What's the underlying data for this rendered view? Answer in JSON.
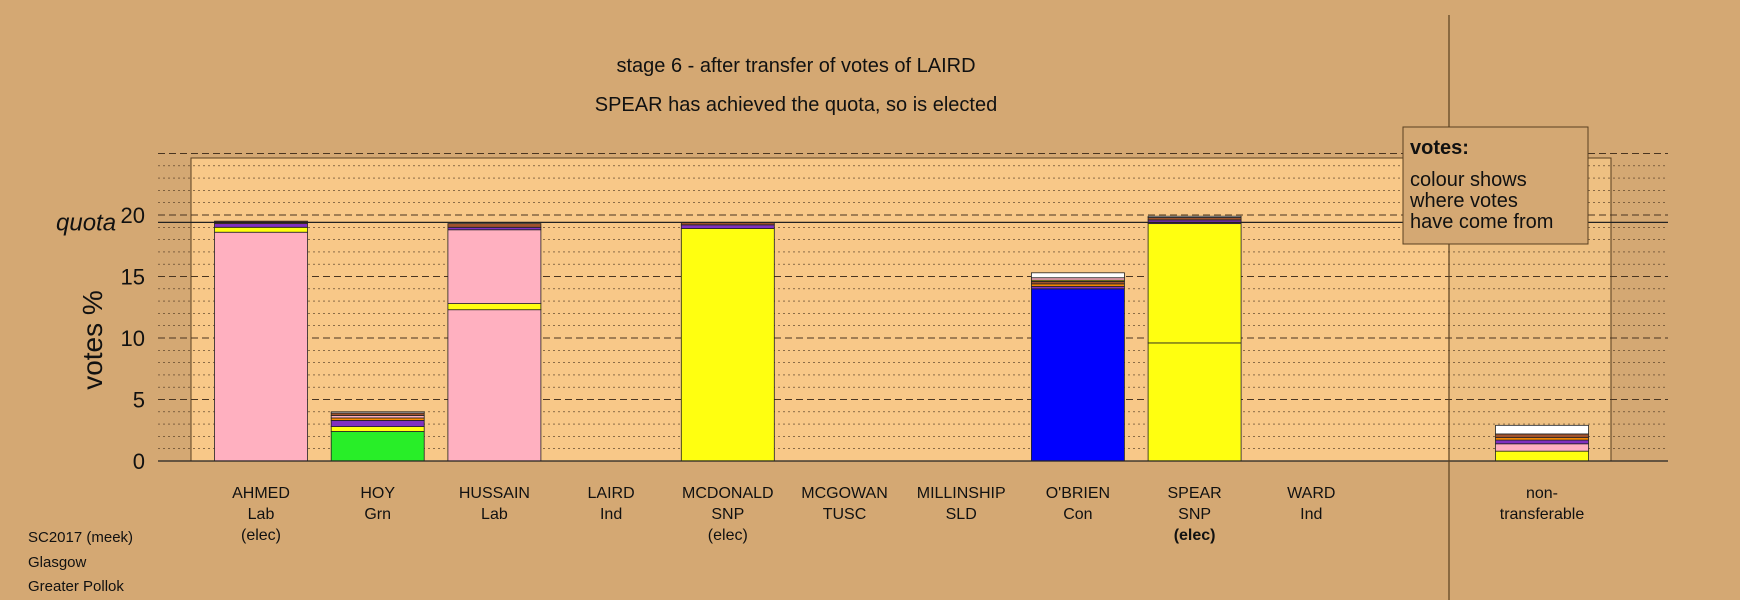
{
  "chart_data": {
    "type": "bar",
    "title": "stage 6 - after transfer of votes of LAIRD",
    "subtitle": "SPEAR has achieved the quota, so is elected",
    "ylabel": "votes %",
    "quota_label": "quota",
    "quota": 19.4,
    "ylim": [
      0,
      25
    ],
    "yticks": [
      0,
      5,
      10,
      15,
      20
    ],
    "grid": true,
    "legend": {
      "title": "votes:",
      "lines": [
        "colour shows",
        "where votes",
        "have come from"
      ],
      "placement": "top-right"
    },
    "colors": {
      "Lab": "#ffb0c0",
      "SNP": "#ffff10",
      "Grn": "#28ee28",
      "Con": "#0000ff",
      "Ind": "#8030c0",
      "TUSC": "#d03030",
      "SLD": "#ff8c00",
      "other": "#ffffff",
      "brown": "#a0522d",
      "background": "#d4a873",
      "plot_area": "#f8c888"
    },
    "candidates": [
      {
        "name": "AHMED",
        "party": "Lab",
        "status": "(elec)",
        "status_bold": false,
        "segments": [
          {
            "from": "Lab",
            "value": 18.6
          },
          {
            "from": "SNP",
            "value": 0.4
          },
          {
            "from": "Ind",
            "value": 0.3
          },
          {
            "from": "brown",
            "value": 0.2
          }
        ]
      },
      {
        "name": "HOY",
        "party": "Grn",
        "status": "",
        "status_bold": false,
        "segments": [
          {
            "from": "Grn",
            "value": 2.4
          },
          {
            "from": "SNP",
            "value": 0.4
          },
          {
            "from": "Ind",
            "value": 0.5
          },
          {
            "from": "SLD",
            "value": 0.2
          },
          {
            "from": "Lab",
            "value": 0.2
          },
          {
            "from": "brown",
            "value": 0.2
          },
          {
            "from": "other",
            "value": 0.1
          }
        ]
      },
      {
        "name": "HUSSAIN",
        "party": "Lab",
        "status": "",
        "status_bold": false,
        "segments": [
          {
            "from": "Lab",
            "value": 12.3
          },
          {
            "from": "SNP",
            "value": 0.5
          },
          {
            "from": "Lab",
            "value": 6.0
          },
          {
            "from": "Ind",
            "value": 0.2
          },
          {
            "from": "brown",
            "value": 0.3
          }
        ]
      },
      {
        "name": "LAIRD",
        "party": "Ind",
        "status": "",
        "status_bold": false,
        "segments": []
      },
      {
        "name": "MCDONALD",
        "party": "SNP",
        "status": "(elec)",
        "status_bold": false,
        "segments": [
          {
            "from": "SNP",
            "value": 18.9
          },
          {
            "from": "Ind",
            "value": 0.3
          },
          {
            "from": "brown",
            "value": 0.2
          }
        ]
      },
      {
        "name": "MCGOWAN",
        "party": "TUSC",
        "status": "",
        "status_bold": false,
        "segments": []
      },
      {
        "name": "MILLINSHIP",
        "party": "SLD",
        "status": "",
        "status_bold": false,
        "segments": []
      },
      {
        "name": "O'BRIEN",
        "party": "Con",
        "status": "",
        "status_bold": false,
        "segments": [
          {
            "from": "Con",
            "value": 14.0
          },
          {
            "from": "Ind",
            "value": 0.2
          },
          {
            "from": "SLD",
            "value": 0.2
          },
          {
            "from": "brown",
            "value": 0.2
          },
          {
            "from": "SNP",
            "value": 0.1
          },
          {
            "from": "Lab",
            "value": 0.2
          },
          {
            "from": "other",
            "value": 0.4
          }
        ]
      },
      {
        "name": "SPEAR",
        "party": "SNP",
        "status": "(elec)",
        "status_bold": true,
        "segments": [
          {
            "from": "SNP",
            "value": 9.6
          },
          {
            "from": "SNP",
            "value": 9.7
          },
          {
            "from": "Ind",
            "value": 0.3
          },
          {
            "from": "brown",
            "value": 0.2
          },
          {
            "from": "other",
            "value": 0.1
          }
        ]
      },
      {
        "name": "WARD",
        "party": "Ind",
        "status": "",
        "status_bold": false,
        "segments": []
      }
    ],
    "non_transferable": {
      "label_line1": "non-",
      "label_line2": "transferable",
      "segments": [
        {
          "from": "SNP",
          "value": 0.8
        },
        {
          "from": "Lab",
          "value": 0.6
        },
        {
          "from": "Ind",
          "value": 0.3
        },
        {
          "from": "SLD",
          "value": 0.2
        },
        {
          "from": "brown",
          "value": 0.3
        },
        {
          "from": "other",
          "value": 0.7
        }
      ]
    }
  },
  "footer": {
    "source": "SC2017 (meek)",
    "council": "Glasgow",
    "ward": "Greater Pollok"
  }
}
